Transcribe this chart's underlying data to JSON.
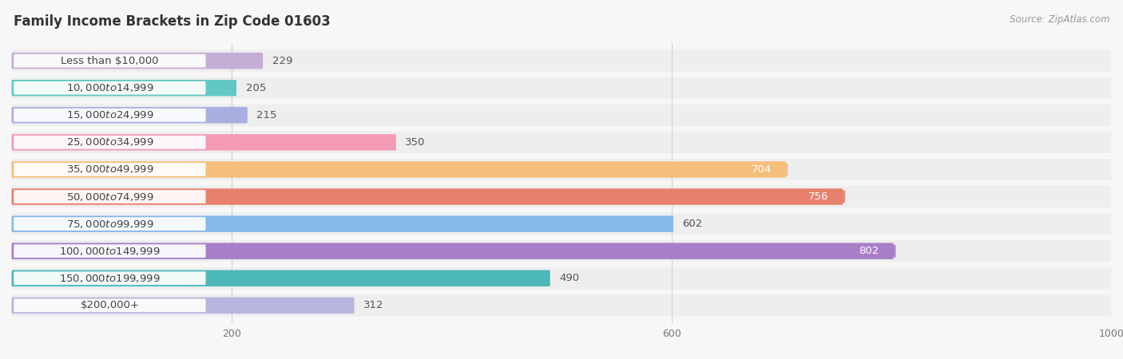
{
  "title": "Family Income Brackets in Zip Code 01603",
  "source": "Source: ZipAtlas.com",
  "categories": [
    "Less than $10,000",
    "$10,000 to $14,999",
    "$15,000 to $24,999",
    "$25,000 to $34,999",
    "$35,000 to $49,999",
    "$50,000 to $74,999",
    "$75,000 to $99,999",
    "$100,000 to $149,999",
    "$150,000 to $199,999",
    "$200,000+"
  ],
  "values": [
    229,
    205,
    215,
    350,
    704,
    756,
    602,
    802,
    490,
    312
  ],
  "bar_colors": [
    "#c5aed6",
    "#62c8c3",
    "#a9aee0",
    "#f49bb5",
    "#f5be7a",
    "#e8806e",
    "#85b8e8",
    "#a87ec8",
    "#4db8b8",
    "#b8b5e0"
  ],
  "label_colors_inside": [
    false,
    false,
    false,
    false,
    true,
    true,
    false,
    true,
    false,
    false
  ],
  "xlim": [
    0,
    1000
  ],
  "xticks": [
    200,
    600,
    1000
  ],
  "background_color": "#f7f7f7",
  "row_bg_color": "#eeeeee",
  "title_fontsize": 12,
  "label_fontsize": 9.5,
  "value_fontsize": 9.5,
  "source_fontsize": 8.5
}
